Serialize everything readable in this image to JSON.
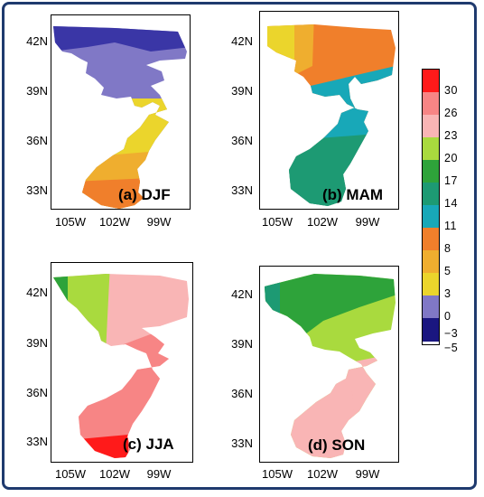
{
  "colors": {
    "frame": "#1f3a6e",
    "cb": [
      "#ff1a1a",
      "#f78585",
      "#f9b5b5",
      "#a9da3e",
      "#2ea33a",
      "#1d9a73",
      "#18a8b8",
      "#f07f2b",
      "#efae2f",
      "#ebd52c",
      "#8078c6",
      "#3a36a6",
      "#1a1680"
    ]
  },
  "colorbar": {
    "ticks": [
      "30",
      "26",
      "23",
      "20",
      "17",
      "14",
      "11",
      "8",
      "5",
      "3",
      "0",
      "−3",
      "−5"
    ]
  },
  "panels": [
    {
      "label": "(a) DJF",
      "lat_ticks": [
        "42N",
        "39N",
        "36N",
        "33N"
      ],
      "lon_ticks": [
        "105W",
        "102W",
        "99W"
      ]
    },
    {
      "label": "(b) MAM",
      "lat_ticks": [
        "42N",
        "39N",
        "36N",
        "33N"
      ],
      "lon_ticks": [
        "105W",
        "102W",
        "99W"
      ]
    },
    {
      "label": "(c) JJA",
      "lat_ticks": [
        "42N",
        "39N",
        "36N",
        "33N"
      ],
      "lon_ticks": [
        "105W",
        "102W",
        "99W"
      ]
    },
    {
      "label": "(d) SON",
      "lat_ticks": [
        "42N",
        "39N",
        "36N",
        "33N"
      ],
      "lon_ticks": [
        "105W",
        "102W",
        "99W"
      ]
    }
  ]
}
